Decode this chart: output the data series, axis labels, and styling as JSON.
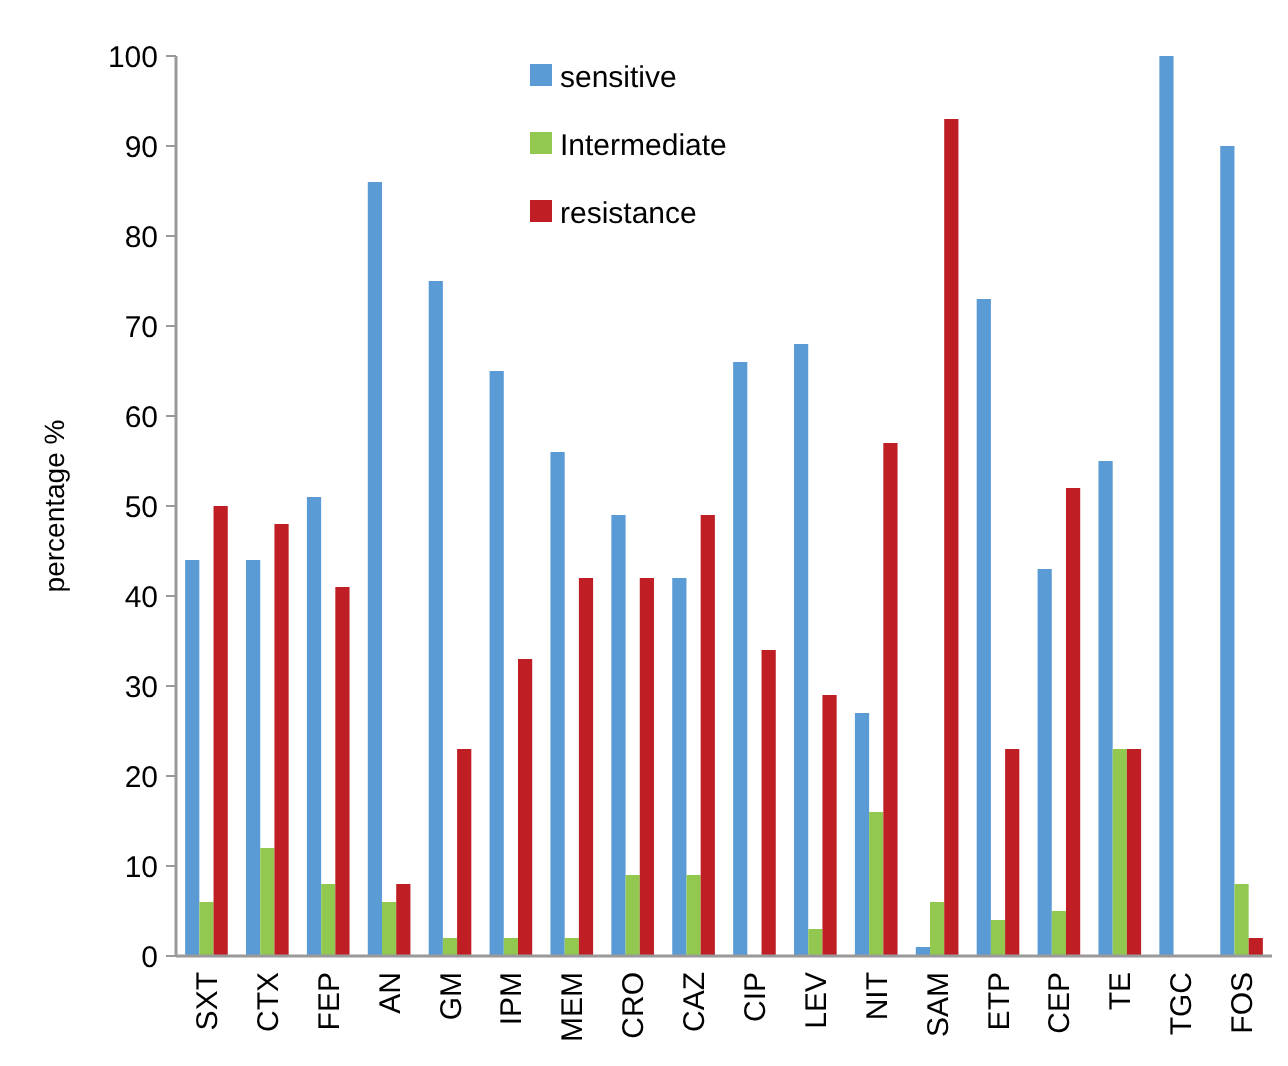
{
  "chart_data": {
    "type": "bar",
    "ylabel": "percentage %",
    "categories": [
      "SXT",
      "CTX",
      "FEP",
      "AN",
      "GM",
      "IPM",
      "MEM",
      "CRO",
      "CAZ",
      "CIP",
      "LEV",
      "NIT",
      "SAM",
      "ETP",
      "CEP",
      "TE",
      "TGC",
      "FOS"
    ],
    "series": [
      {
        "name": "sensitive",
        "color": "#5b9bd5",
        "values": [
          44,
          44,
          51,
          86,
          75,
          65,
          56,
          49,
          42,
          66,
          68,
          27,
          1,
          73,
          43,
          55,
          100,
          90
        ]
      },
      {
        "name": "Intermediate",
        "color": "#92c850",
        "values": [
          6,
          12,
          8,
          6,
          2,
          2,
          2,
          9,
          9,
          0,
          3,
          16,
          6,
          4,
          5,
          23,
          0,
          8
        ]
      },
      {
        "name": "resistance",
        "color": "#be1e24",
        "values": [
          50,
          48,
          41,
          8,
          23,
          33,
          42,
          42,
          49,
          34,
          29,
          57,
          93,
          23,
          52,
          23,
          0,
          2
        ]
      }
    ],
    "ylim": [
      0,
      100
    ],
    "yticks": [
      0,
      10,
      20,
      30,
      40,
      50,
      60,
      70,
      80,
      90,
      100
    ],
    "grid": false,
    "legend": "top"
  }
}
